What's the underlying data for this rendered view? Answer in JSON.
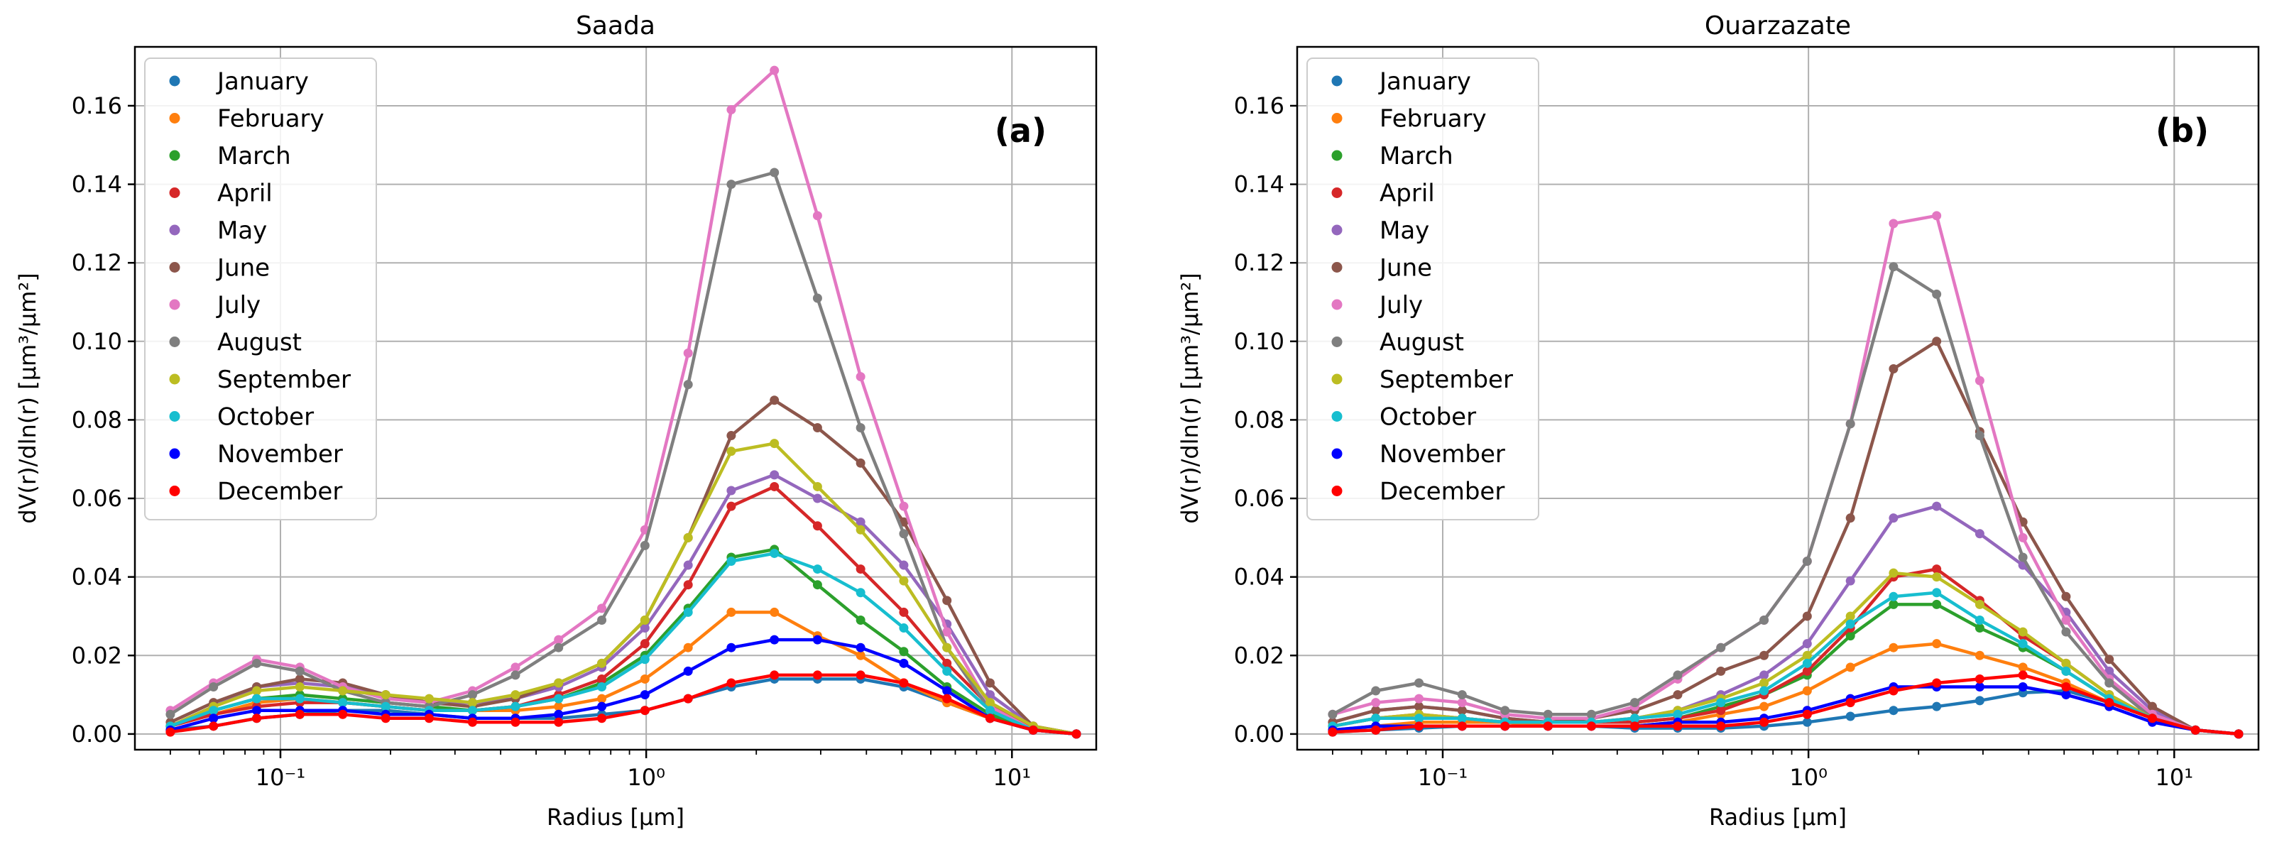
{
  "colors": [
    "#1f77b4",
    "#ff7f0e",
    "#2ca02c",
    "#d62728",
    "#9467bd",
    "#8c564b",
    "#e377c2",
    "#7f7f7f",
    "#bcbd22",
    "#17becf",
    "#0000ff",
    "#ff0000"
  ],
  "chart_data": [
    {
      "type": "line",
      "title": "Saada",
      "tag": "(a)",
      "xlabel": "Radius [μm]",
      "ylabel": "dV(r)/dln(r) [μm³/μm²]",
      "xscale": "log",
      "xlim": [
        0.04,
        17
      ],
      "ylim": [
        -0.004,
        0.175
      ],
      "yticks": [
        "0.00",
        "0.02",
        "0.04",
        "0.06",
        "0.08",
        "0.10",
        "0.12",
        "0.14",
        "0.16"
      ],
      "xticks": [
        "10⁻¹",
        "10⁰",
        "10¹"
      ],
      "grid": true,
      "legend": "top-left",
      "x": [
        0.05,
        0.0656,
        0.0861,
        0.113,
        0.148,
        0.194,
        0.255,
        0.335,
        0.439,
        0.576,
        0.756,
        0.992,
        1.302,
        1.708,
        2.241,
        2.94,
        3.857,
        5.061,
        6.641,
        8.713,
        11.432,
        15.0
      ],
      "series": [
        {
          "name": "January",
          "values": [
            0.001,
            0.002,
            0.004,
            0.005,
            0.006,
            0.006,
            0.005,
            0.004,
            0.004,
            0.004,
            0.005,
            0.006,
            0.009,
            0.012,
            0.014,
            0.014,
            0.014,
            0.012,
            0.008,
            0.004,
            0.001,
            0.0
          ]
        },
        {
          "name": "February",
          "values": [
            0.002,
            0.005,
            0.008,
            0.009,
            0.008,
            0.007,
            0.006,
            0.006,
            0.006,
            0.007,
            0.009,
            0.014,
            0.022,
            0.031,
            0.031,
            0.025,
            0.02,
            0.013,
            0.008,
            0.004,
            0.001,
            0.0
          ]
        },
        {
          "name": "March",
          "values": [
            0.002,
            0.006,
            0.009,
            0.01,
            0.009,
            0.008,
            0.007,
            0.006,
            0.007,
            0.009,
            0.013,
            0.02,
            0.032,
            0.045,
            0.047,
            0.038,
            0.029,
            0.021,
            0.012,
            0.005,
            0.001,
            0.0
          ]
        },
        {
          "name": "April",
          "values": [
            0.002,
            0.005,
            0.007,
            0.008,
            0.008,
            0.007,
            0.006,
            0.006,
            0.007,
            0.01,
            0.014,
            0.023,
            0.038,
            0.058,
            0.063,
            0.053,
            0.042,
            0.031,
            0.018,
            0.007,
            0.002,
            0.0
          ]
        },
        {
          "name": "May",
          "values": [
            0.002,
            0.007,
            0.012,
            0.013,
            0.012,
            0.01,
            0.008,
            0.008,
            0.009,
            0.012,
            0.017,
            0.027,
            0.043,
            0.062,
            0.066,
            0.06,
            0.054,
            0.043,
            0.028,
            0.01,
            0.002,
            0.0
          ]
        },
        {
          "name": "June",
          "values": [
            0.003,
            0.008,
            0.012,
            0.014,
            0.013,
            0.01,
            0.008,
            0.007,
            0.009,
            0.013,
            0.018,
            0.029,
            0.05,
            0.076,
            0.085,
            0.078,
            0.069,
            0.054,
            0.034,
            0.013,
            0.002,
            0.0
          ]
        },
        {
          "name": "July",
          "values": [
            0.006,
            0.013,
            0.019,
            0.017,
            0.012,
            0.009,
            0.008,
            0.011,
            0.017,
            0.024,
            0.032,
            0.052,
            0.097,
            0.159,
            0.169,
            0.132,
            0.091,
            0.058,
            0.026,
            0.007,
            0.001,
            0.0
          ]
        },
        {
          "name": "August",
          "values": [
            0.005,
            0.012,
            0.018,
            0.016,
            0.011,
            0.008,
            0.007,
            0.01,
            0.015,
            0.022,
            0.029,
            0.048,
            0.089,
            0.14,
            0.143,
            0.111,
            0.078,
            0.051,
            0.022,
            0.006,
            0.001,
            0.0
          ]
        },
        {
          "name": "September",
          "values": [
            0.002,
            0.007,
            0.011,
            0.012,
            0.011,
            0.01,
            0.009,
            0.008,
            0.01,
            0.013,
            0.018,
            0.029,
            0.05,
            0.072,
            0.074,
            0.063,
            0.052,
            0.039,
            0.022,
            0.008,
            0.002,
            0.0
          ]
        },
        {
          "name": "October",
          "values": [
            0.002,
            0.006,
            0.009,
            0.009,
            0.008,
            0.007,
            0.006,
            0.006,
            0.007,
            0.009,
            0.012,
            0.019,
            0.031,
            0.044,
            0.046,
            0.042,
            0.036,
            0.027,
            0.016,
            0.006,
            0.001,
            0.0
          ]
        },
        {
          "name": "November",
          "values": [
            0.001,
            0.004,
            0.006,
            0.006,
            0.006,
            0.005,
            0.005,
            0.004,
            0.004,
            0.005,
            0.007,
            0.01,
            0.016,
            0.022,
            0.024,
            0.024,
            0.022,
            0.018,
            0.011,
            0.004,
            0.001,
            0.0
          ]
        },
        {
          "name": "December",
          "values": [
            0.0005,
            0.002,
            0.004,
            0.005,
            0.005,
            0.004,
            0.004,
            0.003,
            0.003,
            0.003,
            0.004,
            0.006,
            0.009,
            0.013,
            0.015,
            0.015,
            0.015,
            0.013,
            0.009,
            0.004,
            0.001,
            0.0
          ]
        }
      ]
    },
    {
      "type": "line",
      "title": "Ouarzazate",
      "tag": "(b)",
      "xlabel": "Radius [μm]",
      "ylabel": "dV(r)/dln(r) [μm³/μm²]",
      "xscale": "log",
      "xlim": [
        0.04,
        17
      ],
      "ylim": [
        -0.004,
        0.175
      ],
      "yticks": [
        "0.00",
        "0.02",
        "0.04",
        "0.06",
        "0.08",
        "0.10",
        "0.12",
        "0.14",
        "0.16"
      ],
      "xticks": [
        "10⁻¹",
        "10⁰",
        "10¹"
      ],
      "grid": true,
      "legend": "top-left",
      "x": [
        0.05,
        0.0656,
        0.0861,
        0.113,
        0.148,
        0.194,
        0.255,
        0.335,
        0.439,
        0.576,
        0.756,
        0.992,
        1.302,
        1.708,
        2.241,
        2.94,
        3.857,
        5.061,
        6.641,
        8.713,
        11.432,
        15.0
      ],
      "series": [
        {
          "name": "January",
          "values": [
            0.0005,
            0.001,
            0.0015,
            0.002,
            0.002,
            0.002,
            0.002,
            0.0015,
            0.0015,
            0.0015,
            0.002,
            0.003,
            0.0045,
            0.006,
            0.007,
            0.0085,
            0.0105,
            0.011,
            0.008,
            0.004,
            0.001,
            0.0
          ]
        },
        {
          "name": "February",
          "values": [
            0.001,
            0.002,
            0.003,
            0.003,
            0.003,
            0.002,
            0.002,
            0.002,
            0.003,
            0.005,
            0.007,
            0.011,
            0.017,
            0.022,
            0.023,
            0.02,
            0.017,
            0.013,
            0.008,
            0.004,
            0.001,
            0.0
          ]
        },
        {
          "name": "March",
          "values": [
            0.002,
            0.004,
            0.004,
            0.004,
            0.003,
            0.003,
            0.003,
            0.003,
            0.004,
            0.007,
            0.01,
            0.015,
            0.025,
            0.033,
            0.033,
            0.027,
            0.022,
            0.016,
            0.009,
            0.004,
            0.001,
            0.0
          ]
        },
        {
          "name": "April",
          "values": [
            0.002,
            0.004,
            0.005,
            0.004,
            0.003,
            0.003,
            0.003,
            0.003,
            0.004,
            0.006,
            0.01,
            0.016,
            0.027,
            0.04,
            0.042,
            0.034,
            0.025,
            0.018,
            0.01,
            0.004,
            0.001,
            0.0
          ]
        },
        {
          "name": "May",
          "values": [
            0.003,
            0.006,
            0.007,
            0.006,
            0.004,
            0.003,
            0.003,
            0.004,
            0.006,
            0.01,
            0.015,
            0.023,
            0.039,
            0.055,
            0.058,
            0.051,
            0.043,
            0.031,
            0.016,
            0.006,
            0.001,
            0.0
          ]
        },
        {
          "name": "June",
          "values": [
            0.003,
            0.006,
            0.007,
            0.006,
            0.004,
            0.003,
            0.004,
            0.006,
            0.01,
            0.016,
            0.02,
            0.03,
            0.055,
            0.093,
            0.1,
            0.077,
            0.054,
            0.035,
            0.019,
            0.007,
            0.001,
            0.0
          ]
        },
        {
          "name": "July",
          "values": [
            0.005,
            0.008,
            0.009,
            0.008,
            0.005,
            0.004,
            0.004,
            0.007,
            0.014,
            0.022,
            0.029,
            0.044,
            0.079,
            0.13,
            0.132,
            0.09,
            0.05,
            0.029,
            0.014,
            0.005,
            0.001,
            0.0
          ]
        },
        {
          "name": "August",
          "values": [
            0.005,
            0.011,
            0.013,
            0.01,
            0.006,
            0.005,
            0.005,
            0.008,
            0.015,
            0.022,
            0.029,
            0.044,
            0.079,
            0.119,
            0.112,
            0.076,
            0.045,
            0.026,
            0.013,
            0.004,
            0.001,
            0.0
          ]
        },
        {
          "name": "September",
          "values": [
            0.002,
            0.004,
            0.005,
            0.004,
            0.003,
            0.003,
            0.003,
            0.004,
            0.006,
            0.009,
            0.013,
            0.02,
            0.03,
            0.041,
            0.04,
            0.033,
            0.026,
            0.018,
            0.01,
            0.004,
            0.001,
            0.0
          ]
        },
        {
          "name": "October",
          "values": [
            0.002,
            0.004,
            0.004,
            0.004,
            0.003,
            0.003,
            0.003,
            0.004,
            0.005,
            0.008,
            0.011,
            0.018,
            0.028,
            0.035,
            0.036,
            0.029,
            0.023,
            0.016,
            0.009,
            0.004,
            0.001,
            0.0
          ]
        },
        {
          "name": "November",
          "values": [
            0.001,
            0.002,
            0.002,
            0.002,
            0.002,
            0.002,
            0.002,
            0.002,
            0.003,
            0.003,
            0.004,
            0.006,
            0.009,
            0.012,
            0.012,
            0.012,
            0.012,
            0.01,
            0.007,
            0.003,
            0.001,
            0.0
          ]
        },
        {
          "name": "December",
          "values": [
            0.0005,
            0.001,
            0.002,
            0.002,
            0.002,
            0.002,
            0.002,
            0.002,
            0.002,
            0.002,
            0.003,
            0.005,
            0.008,
            0.011,
            0.013,
            0.014,
            0.015,
            0.012,
            0.008,
            0.004,
            0.001,
            0.0
          ]
        }
      ]
    }
  ]
}
